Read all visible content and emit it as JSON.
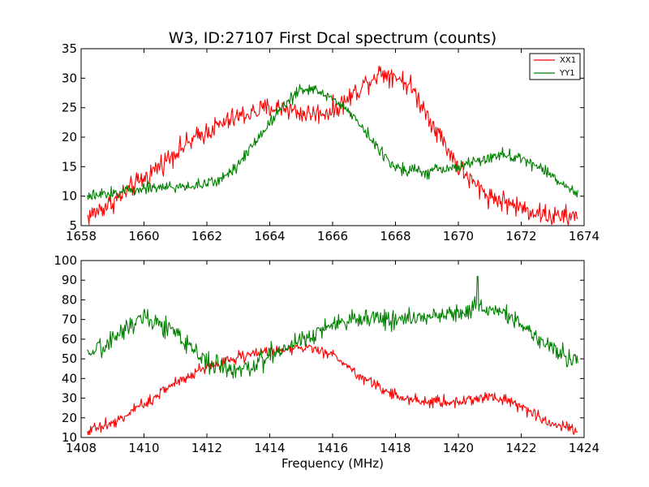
{
  "chart_data": [
    {
      "type": "line",
      "title": "W3, ID:27107 First Dcal spectrum (counts)",
      "xlabel": "",
      "ylabel": "",
      "xlim": [
        1658,
        1674
      ],
      "ylim": [
        5,
        35
      ],
      "xticks": [
        1658,
        1660,
        1662,
        1664,
        1666,
        1668,
        1670,
        1672,
        1674
      ],
      "yticks": [
        5,
        10,
        15,
        20,
        25,
        30,
        35
      ],
      "legend": {
        "position": "top-right"
      },
      "grid": false,
      "series": [
        {
          "name": "XX1",
          "color": "#ff0000",
          "noise": 0.9,
          "x": [
            1658.2,
            1659.0,
            1660.0,
            1661.0,
            1662.0,
            1663.0,
            1664.0,
            1664.5,
            1665.0,
            1665.5,
            1666.0,
            1666.5,
            1667.0,
            1667.5,
            1668.0,
            1668.5,
            1669.0,
            1669.5,
            1670.0,
            1670.5,
            1671.0,
            1672.0,
            1673.0,
            1673.8
          ],
          "y": [
            6.5,
            9.0,
            13.0,
            17.5,
            21.0,
            23.5,
            25.0,
            25.0,
            24.0,
            24.0,
            24.5,
            26.5,
            29.0,
            31.0,
            30.5,
            28.5,
            24.0,
            19.5,
            15.0,
            12.0,
            10.0,
            8.0,
            6.5,
            6.5
          ]
        },
        {
          "name": "YY1",
          "color": "#008000",
          "noise": 0.5,
          "x": [
            1658.2,
            1659.0,
            1660.0,
            1661.0,
            1662.0,
            1662.5,
            1663.0,
            1663.5,
            1664.0,
            1664.5,
            1665.0,
            1665.5,
            1666.0,
            1666.5,
            1667.0,
            1667.5,
            1668.0,
            1669.0,
            1670.0,
            1671.0,
            1671.5,
            1672.0,
            1673.0,
            1673.8
          ],
          "y": [
            9.8,
            10.5,
            11.5,
            11.5,
            12.0,
            13.0,
            15.5,
            19.0,
            22.5,
            26.0,
            28.0,
            28.0,
            26.5,
            24.5,
            21.5,
            17.5,
            15.0,
            14.0,
            15.0,
            16.5,
            17.0,
            16.5,
            13.5,
            10.0
          ]
        }
      ]
    },
    {
      "type": "line",
      "title": "",
      "xlabel": "Frequency (MHz)",
      "ylabel": "",
      "xlim": [
        1408,
        1424
      ],
      "ylim": [
        10,
        100
      ],
      "xticks": [
        1408,
        1410,
        1412,
        1414,
        1416,
        1418,
        1420,
        1422,
        1424
      ],
      "yticks": [
        10,
        20,
        30,
        40,
        50,
        60,
        70,
        80,
        90,
        100
      ],
      "grid": false,
      "series": [
        {
          "name": "XX1",
          "color": "#ff0000",
          "noise": 1.5,
          "x": [
            1408.2,
            1409.0,
            1410.0,
            1411.0,
            1412.0,
            1413.0,
            1414.0,
            1415.0,
            1416.0,
            1417.0,
            1418.0,
            1419.0,
            1420.0,
            1421.0,
            1421.5,
            1422.0,
            1423.0,
            1423.8
          ],
          "y": [
            14,
            17,
            27,
            38,
            46,
            51,
            54,
            56,
            52,
            40,
            31,
            28,
            28,
            31,
            30,
            25,
            17,
            14
          ]
        },
        {
          "name": "YY1",
          "color": "#008000",
          "noise": 2.5,
          "x": [
            1408.2,
            1409.0,
            1409.5,
            1410.0,
            1410.5,
            1411.0,
            1411.5,
            1412.0,
            1412.5,
            1413.0,
            1413.5,
            1414.0,
            1414.5,
            1415.0,
            1416.0,
            1417.0,
            1418.0,
            1419.0,
            1420.0,
            1420.5,
            1421.0,
            1421.5,
            1422.0,
            1423.0,
            1423.8
          ],
          "y": [
            50,
            60,
            67,
            72,
            68,
            63,
            55,
            49,
            46,
            44,
            46,
            52,
            56,
            60,
            67,
            71,
            70,
            71,
            74,
            76,
            76,
            73,
            67,
            55,
            49
          ],
          "spike": {
            "x": 1420.6,
            "y": 92
          }
        }
      ]
    }
  ]
}
